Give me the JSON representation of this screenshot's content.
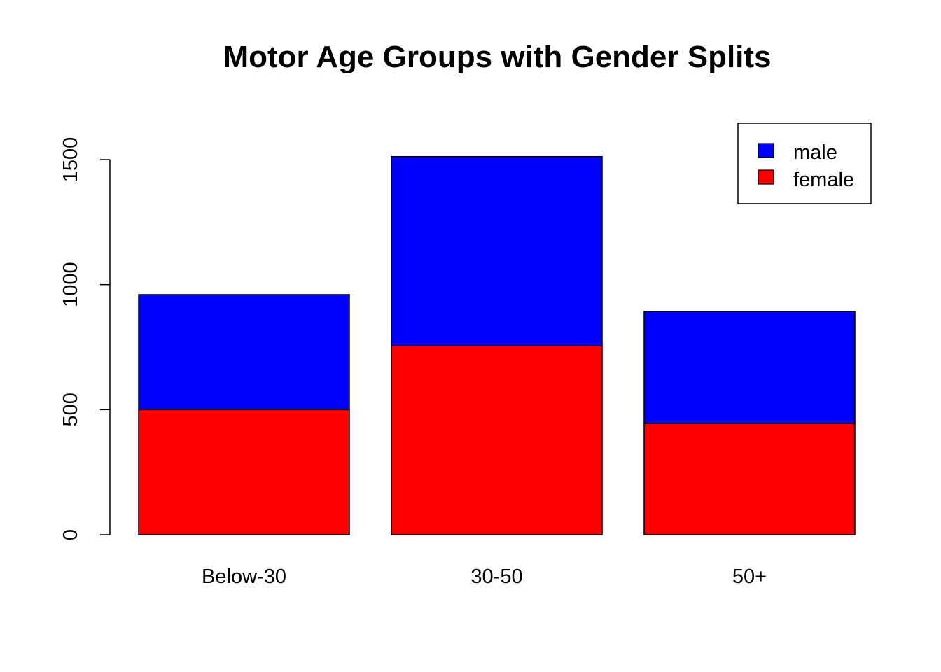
{
  "chart_data": {
    "type": "bar",
    "stacked": true,
    "title": "Motor Age Groups with Gender Splits",
    "xlabel": "",
    "ylabel": "",
    "categories": [
      "Below-30",
      "30-50",
      "50+"
    ],
    "series": [
      {
        "name": "female",
        "color": "#FF0000",
        "values": [
          500,
          755,
          445
        ]
      },
      {
        "name": "male",
        "color": "#0000FF",
        "values": [
          460,
          757,
          447
        ]
      }
    ],
    "ylim": [
      0,
      1500
    ],
    "y_ticks": [
      "0",
      "500",
      "1000",
      "1500"
    ],
    "legend": {
      "position": "top-right",
      "entries": [
        {
          "label": "male",
          "color": "#0000FF"
        },
        {
          "label": "female",
          "color": "#FF0000"
        }
      ]
    },
    "grid": false
  }
}
